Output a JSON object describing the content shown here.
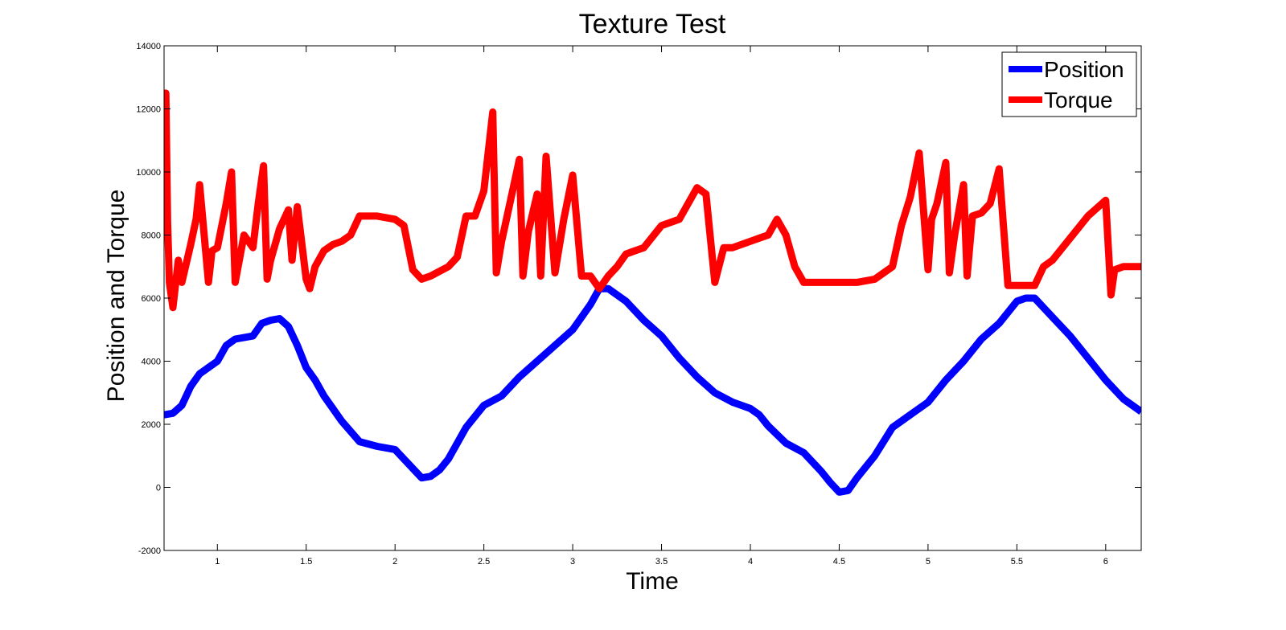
{
  "chart_data": {
    "type": "line",
    "title": "Texture Test",
    "xlabel": "Time",
    "ylabel": "Position and Torque",
    "xlim": [
      0.7,
      6.2
    ],
    "ylim": [
      -2000,
      14000
    ],
    "xticks": [
      "1",
      "1.5",
      "2",
      "2.5",
      "3",
      "3.5",
      "4",
      "4.5",
      "5",
      "5.5",
      "6"
    ],
    "xtick_values": [
      1,
      1.5,
      2,
      2.5,
      3,
      3.5,
      4,
      4.5,
      5,
      5.5,
      6
    ],
    "yticks": [
      "-2000",
      "0",
      "2000",
      "4000",
      "6000",
      "8000",
      "10000",
      "12000",
      "14000"
    ],
    "ytick_values": [
      -2000,
      0,
      2000,
      4000,
      6000,
      8000,
      10000,
      12000,
      14000
    ],
    "grid": false,
    "legend_position": "top-right",
    "series": [
      {
        "name": "Position",
        "color": "#0000ff",
        "x": [
          0.7,
          0.75,
          0.8,
          0.85,
          0.9,
          1.0,
          1.05,
          1.1,
          1.2,
          1.25,
          1.3,
          1.35,
          1.4,
          1.45,
          1.5,
          1.55,
          1.6,
          1.65,
          1.7,
          1.8,
          1.9,
          2.0,
          2.05,
          2.1,
          2.15,
          2.2,
          2.25,
          2.3,
          2.4,
          2.5,
          2.6,
          2.7,
          2.8,
          2.9,
          3.0,
          3.1,
          3.15,
          3.2,
          3.3,
          3.4,
          3.5,
          3.6,
          3.7,
          3.8,
          3.9,
          4.0,
          4.05,
          4.1,
          4.2,
          4.3,
          4.4,
          4.45,
          4.5,
          4.55,
          4.6,
          4.7,
          4.8,
          4.9,
          5.0,
          5.1,
          5.2,
          5.3,
          5.4,
          5.5,
          5.55,
          5.6,
          5.7,
          5.8,
          5.9,
          6.0,
          6.1,
          6.2
        ],
        "y": [
          2300,
          2350,
          2600,
          3200,
          3600,
          4000,
          4500,
          4700,
          4800,
          5200,
          5300,
          5350,
          5100,
          4500,
          3800,
          3400,
          2900,
          2500,
          2100,
          1450,
          1300,
          1200,
          900,
          600,
          300,
          350,
          550,
          900,
          1900,
          2600,
          2900,
          3500,
          4000,
          4500,
          5000,
          5800,
          6300,
          6300,
          5900,
          5300,
          4800,
          4100,
          3500,
          3000,
          2700,
          2500,
          2300,
          1950,
          1400,
          1100,
          500,
          150,
          -150,
          -100,
          300,
          1000,
          1900,
          2300,
          2700,
          3400,
          4000,
          4700,
          5200,
          5900,
          6000,
          6000,
          5400,
          4800,
          4100,
          3400,
          2800,
          2400
        ]
      },
      {
        "name": "Torque",
        "color": "#ff0000",
        "x": [
          0.7,
          0.71,
          0.72,
          0.73,
          0.75,
          0.78,
          0.8,
          0.85,
          0.88,
          0.9,
          0.95,
          0.97,
          1.0,
          1.05,
          1.08,
          1.1,
          1.13,
          1.15,
          1.2,
          1.23,
          1.26,
          1.28,
          1.3,
          1.35,
          1.4,
          1.42,
          1.45,
          1.5,
          1.52,
          1.55,
          1.6,
          1.65,
          1.7,
          1.75,
          1.8,
          1.9,
          2.0,
          2.05,
          2.1,
          2.15,
          2.2,
          2.3,
          2.35,
          2.4,
          2.45,
          2.5,
          2.55,
          2.57,
          2.6,
          2.65,
          2.7,
          2.72,
          2.75,
          2.8,
          2.82,
          2.85,
          2.9,
          2.95,
          3.0,
          3.05,
          3.1,
          3.15,
          3.2,
          3.25,
          3.3,
          3.35,
          3.4,
          3.5,
          3.6,
          3.7,
          3.75,
          3.8,
          3.85,
          3.9,
          4.0,
          4.05,
          4.1,
          4.15,
          4.2,
          4.25,
          4.3,
          4.4,
          4.5,
          4.6,
          4.7,
          4.8,
          4.85,
          4.9,
          4.95,
          5.0,
          5.02,
          5.05,
          5.1,
          5.12,
          5.15,
          5.2,
          5.22,
          5.25,
          5.3,
          5.35,
          5.4,
          5.45,
          5.5,
          5.55,
          5.6,
          5.65,
          5.7,
          5.8,
          5.9,
          6.0,
          6.03,
          6.05,
          6.1,
          6.15,
          6.2
        ],
        "y": [
          9700,
          12500,
          8400,
          6500,
          5700,
          7200,
          6500,
          7700,
          8500,
          9600,
          6500,
          7500,
          7600,
          9000,
          10000,
          6500,
          7400,
          8000,
          7600,
          9000,
          10200,
          6600,
          7200,
          8200,
          8800,
          7200,
          8900,
          6600,
          6300,
          7000,
          7500,
          7700,
          7800,
          8000,
          8600,
          8600,
          8500,
          8300,
          6900,
          6600,
          6700,
          7000,
          7300,
          8600,
          8600,
          9400,
          11900,
          6800,
          7800,
          9100,
          10400,
          6700,
          8100,
          9300,
          6700,
          10500,
          6800,
          8500,
          9900,
          6700,
          6700,
          6300,
          6700,
          7000,
          7400,
          7500,
          7600,
          8300,
          8500,
          9500,
          9300,
          6500,
          7600,
          7600,
          7800,
          7900,
          8000,
          8500,
          8000,
          7000,
          6500,
          6500,
          6500,
          6500,
          6600,
          7000,
          8300,
          9200,
          10600,
          6900,
          8500,
          9000,
          10300,
          6800,
          8000,
          9600,
          6700,
          8600,
          8700,
          9000,
          10100,
          6400,
          6400,
          6400,
          6400,
          7000,
          7200,
          7900,
          8600,
          9100,
          6100,
          6900,
          7000,
          7000,
          7000
        ]
      }
    ]
  }
}
